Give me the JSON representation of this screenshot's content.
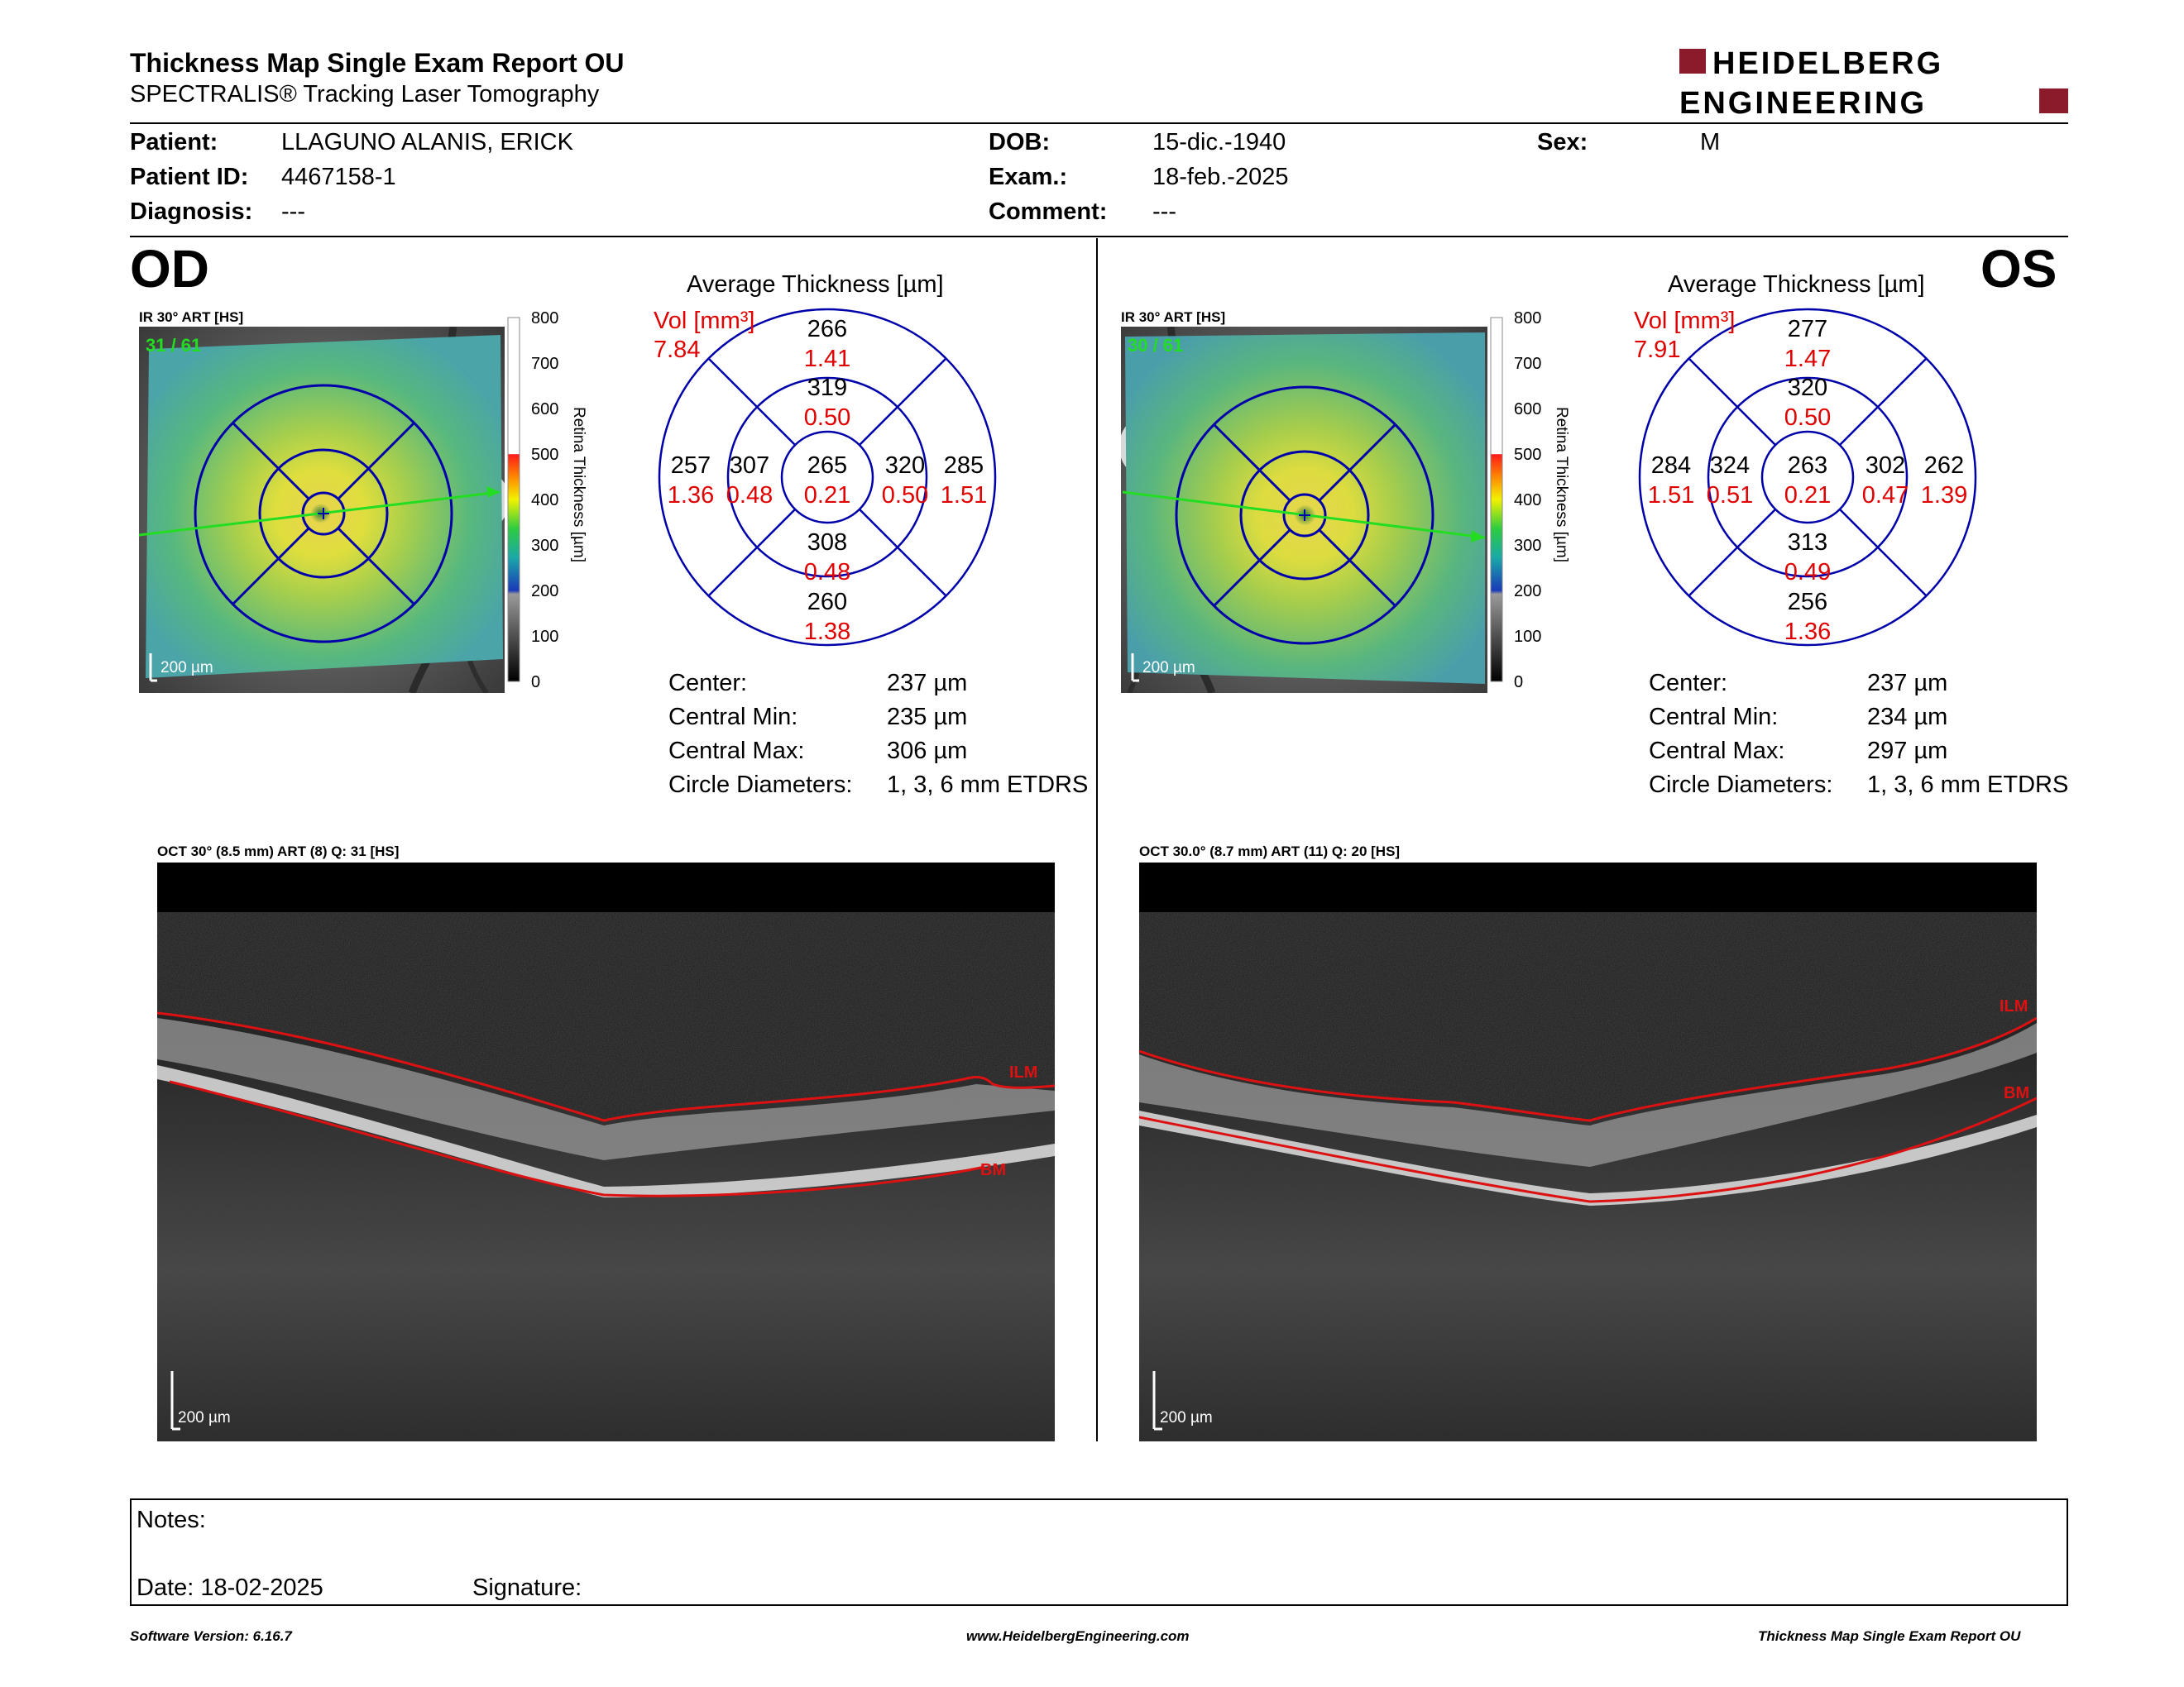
{
  "header": {
    "title": "Thickness Map Single Exam Report OU",
    "subtitle": "SPECTRALIS® Tracking Laser Tomography",
    "logo_line1": "HEIDELBERG",
    "logo_line2": "ENGINEERING"
  },
  "patient": {
    "patient_label": "Patient:",
    "patient_value": "LLAGUNO ALANIS, ERICK",
    "id_label": "Patient ID:",
    "id_value": "4467158-1",
    "diagnosis_label": "Diagnosis:",
    "diagnosis_value": "---",
    "dob_label": "DOB:",
    "dob_value": "15-dic.-1940",
    "exam_label": "Exam.:",
    "exam_value": "18-feb.-2025",
    "comment_label": "Comment:",
    "comment_value": "---",
    "sex_label": "Sex:",
    "sex_value": "M"
  },
  "od": {
    "eye": "OD",
    "ir_caption": "IR 30° ART [HS]",
    "ir_counter": "31 / 61",
    "ir_scale": "200 µm",
    "map_title": "Average Thickness [µm]",
    "vol_label": "Vol [mm³]",
    "vol_total": "7.84",
    "sectors": {
      "sup_out": [
        "266",
        "1.41"
      ],
      "sup_in": [
        "319",
        "0.50"
      ],
      "temp_out": [
        "257",
        "1.36"
      ],
      "temp_in": [
        "307",
        "0.48"
      ],
      "center": [
        "265",
        "0.21"
      ],
      "nas_in": [
        "320",
        "0.50"
      ],
      "nas_out": [
        "285",
        "1.51"
      ],
      "inf_in": [
        "308",
        "0.48"
      ],
      "inf_out": [
        "260",
        "1.38"
      ]
    },
    "stats": [
      {
        "label": "Center:",
        "value": "237 µm"
      },
      {
        "label": "Central Min:",
        "value": "235 µm"
      },
      {
        "label": "Central Max:",
        "value": "306 µm"
      },
      {
        "label": "Circle Diameters:",
        "value": "1, 3, 6 mm ETDRS"
      }
    ],
    "oct_caption": "OCT 30° (8.5 mm) ART (8) Q: 31 [HS]",
    "oct_scale": "200 µm",
    "ilm": "ILM",
    "bm": "BM"
  },
  "os": {
    "eye": "OS",
    "ir_caption": "IR 30° ART [HS]",
    "ir_counter": "30 / 61",
    "ir_scale": "200 µm",
    "map_title": "Average Thickness [µm]",
    "vol_label": "Vol [mm³]",
    "vol_total": "7.91",
    "sectors": {
      "sup_out": [
        "277",
        "1.47"
      ],
      "sup_in": [
        "320",
        "0.50"
      ],
      "temp_out": [
        "284",
        "1.51"
      ],
      "temp_in": [
        "324",
        "0.51"
      ],
      "center": [
        "263",
        "0.21"
      ],
      "nas_in": [
        "302",
        "0.47"
      ],
      "nas_out": [
        "262",
        "1.39"
      ],
      "inf_in": [
        "313",
        "0.49"
      ],
      "inf_out": [
        "256",
        "1.36"
      ]
    },
    "stats": [
      {
        "label": "Center:",
        "value": "237 µm"
      },
      {
        "label": "Central Min:",
        "value": "234 µm"
      },
      {
        "label": "Central Max:",
        "value": "297 µm"
      },
      {
        "label": "Circle Diameters:",
        "value": "1, 3, 6 mm ETDRS"
      }
    ],
    "oct_caption": "OCT 30.0° (8.7 mm) ART (11) Q: 20 [HS]",
    "oct_scale": "200 µm",
    "ilm": "ILM",
    "bm": "BM"
  },
  "colorbar": {
    "ticks": [
      "800",
      "700",
      "600",
      "500",
      "400",
      "300",
      "200",
      "100",
      "0"
    ],
    "label": "Retina Thickness [µm]"
  },
  "notes": {
    "notes_label": "Notes:",
    "date_label": "Date: 18-02-2025",
    "signature_label": "Signature:"
  },
  "footer": {
    "software": "Software Version: 6.16.7",
    "website": "www.HeidelbergEngineering.com",
    "report": "Thickness Map Single Exam Report OU"
  },
  "colors": {
    "brand_red": "#8b1a2b",
    "value_red": "#e00000",
    "grid_blue": "#0000aa",
    "scan_green": "#22dd22",
    "segment_red": "#dd1111"
  }
}
